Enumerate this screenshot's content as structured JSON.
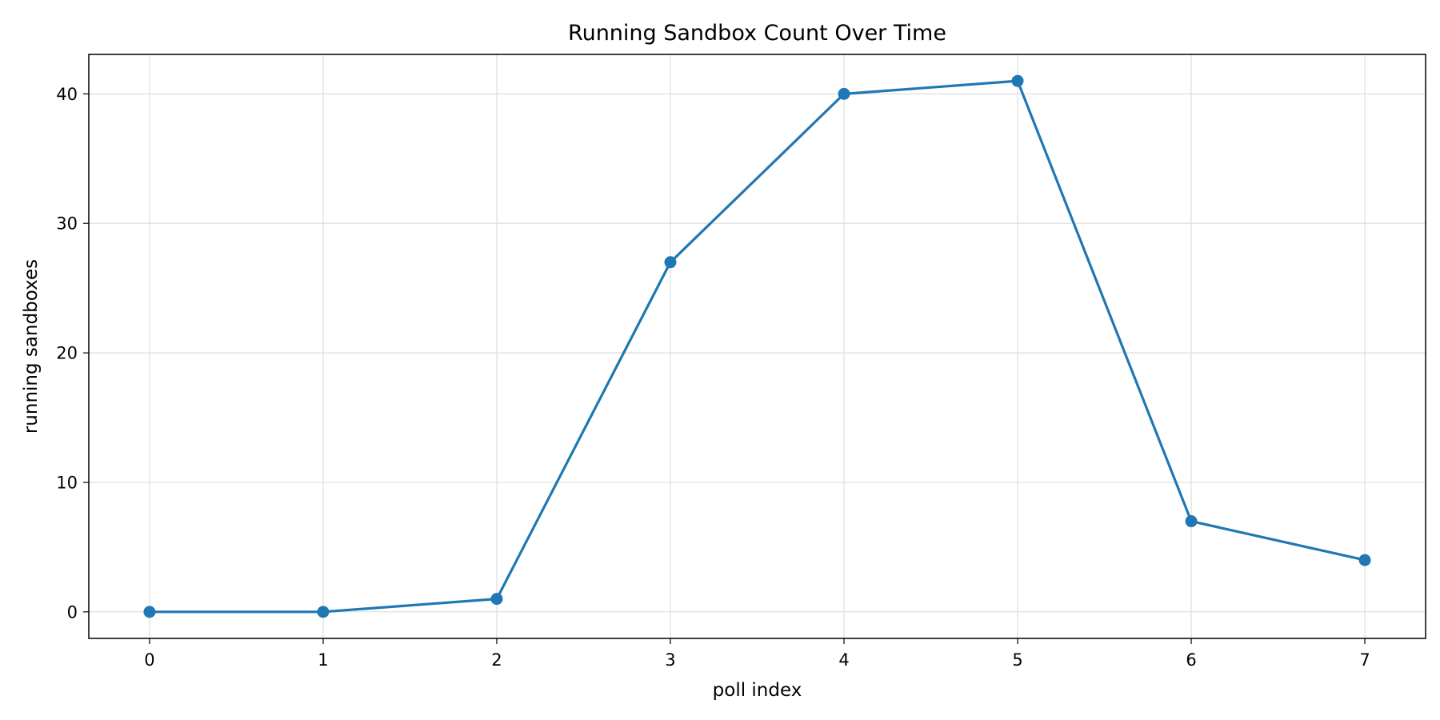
{
  "chart_data": {
    "type": "line",
    "title": "Running Sandbox Count Over Time",
    "xlabel": "poll index",
    "ylabel": "running sandboxes",
    "x": [
      0,
      1,
      2,
      3,
      4,
      5,
      6,
      7
    ],
    "xticks": [
      0,
      1,
      2,
      3,
      4,
      5,
      6,
      7
    ],
    "yticks": [
      0,
      10,
      20,
      30,
      40
    ],
    "xlim": [
      -0.35,
      7.35
    ],
    "ylim": [
      -2.05,
      43.05
    ],
    "grid": true,
    "series": [
      {
        "values": [
          0,
          0,
          1,
          27,
          40,
          41,
          7,
          4
        ],
        "color": "#1f77b4",
        "marker": "circle"
      }
    ]
  }
}
